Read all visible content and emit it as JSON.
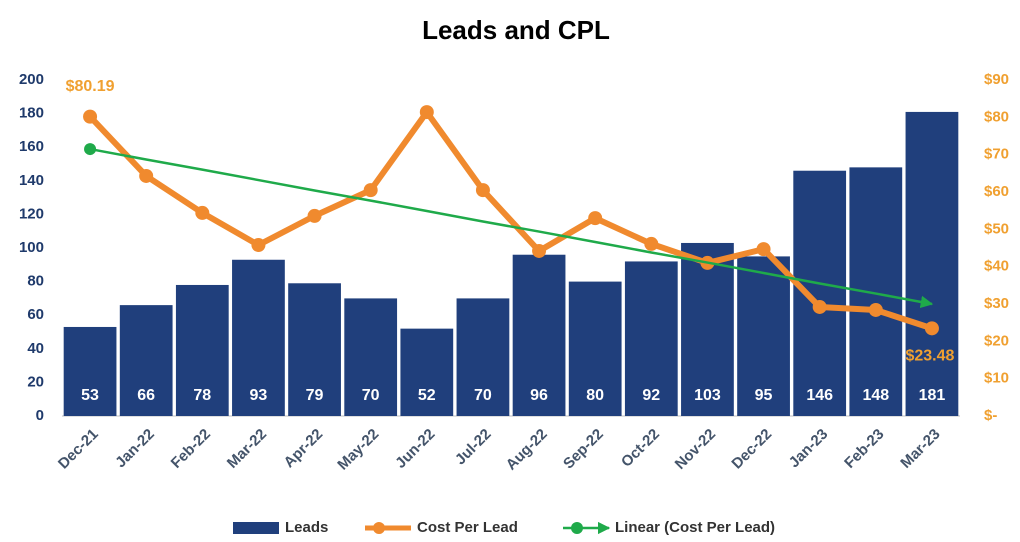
{
  "chart_data": {
    "type": "bar",
    "title": "Leads and CPL",
    "categories": [
      "Dec-21",
      "Jan-22",
      "Feb-22",
      "Mar-22",
      "Apr-22",
      "May-22",
      "Jun-22",
      "Jul-22",
      "Aug-22",
      "Sep-22",
      "Oct-22",
      "Nov-22",
      "Dec-22",
      "Jan-23",
      "Feb-23",
      "Mar-23"
    ],
    "series": [
      {
        "name": "Leads",
        "type": "bar",
        "color": "#203f7c",
        "axis": "y",
        "values": [
          53,
          66,
          78,
          93,
          79,
          70,
          52,
          70,
          96,
          80,
          92,
          103,
          95,
          146,
          148,
          181
        ]
      },
      {
        "name": "Cost Per Lead",
        "type": "line",
        "color": "#f08a2e",
        "axis": "y2",
        "values": [
          80.19,
          64.3,
          54.4,
          45.8,
          53.6,
          60.5,
          81.4,
          60.5,
          44.2,
          53.0,
          46.1,
          41.0,
          44.7,
          29.2,
          28.4,
          23.48
        ],
        "value_labels": [
          "$80.19",
          null,
          null,
          null,
          null,
          null,
          null,
          null,
          null,
          null,
          null,
          null,
          null,
          null,
          null,
          "$23.48"
        ]
      },
      {
        "name": "Linear (Cost Per Lead)",
        "type": "trend",
        "color": "#1faa4a",
        "axis": "y2",
        "values": [
          71.5,
          68.7,
          66.0,
          63.2,
          60.4,
          57.7,
          54.9,
          52.1,
          49.4,
          46.6,
          43.8,
          41.1,
          38.3,
          35.5,
          32.8,
          30.0
        ]
      }
    ],
    "ylim": [
      0,
      200
    ],
    "yticks": [
      0,
      20,
      40,
      60,
      80,
      100,
      120,
      140,
      160,
      180,
      200
    ],
    "y2lim": [
      0,
      90
    ],
    "y2ticks": [
      {
        "value": 0,
        "label": "$-"
      },
      {
        "value": 10,
        "label": "$10"
      },
      {
        "value": 20,
        "label": "$20"
      },
      {
        "value": 30,
        "label": "$30"
      },
      {
        "value": 40,
        "label": "$40"
      },
      {
        "value": 50,
        "label": "$50"
      },
      {
        "value": 60,
        "label": "$60"
      },
      {
        "value": 70,
        "label": "$70"
      },
      {
        "value": 80,
        "label": "$80"
      },
      {
        "value": 90,
        "label": "$90"
      }
    ],
    "grid": false
  }
}
